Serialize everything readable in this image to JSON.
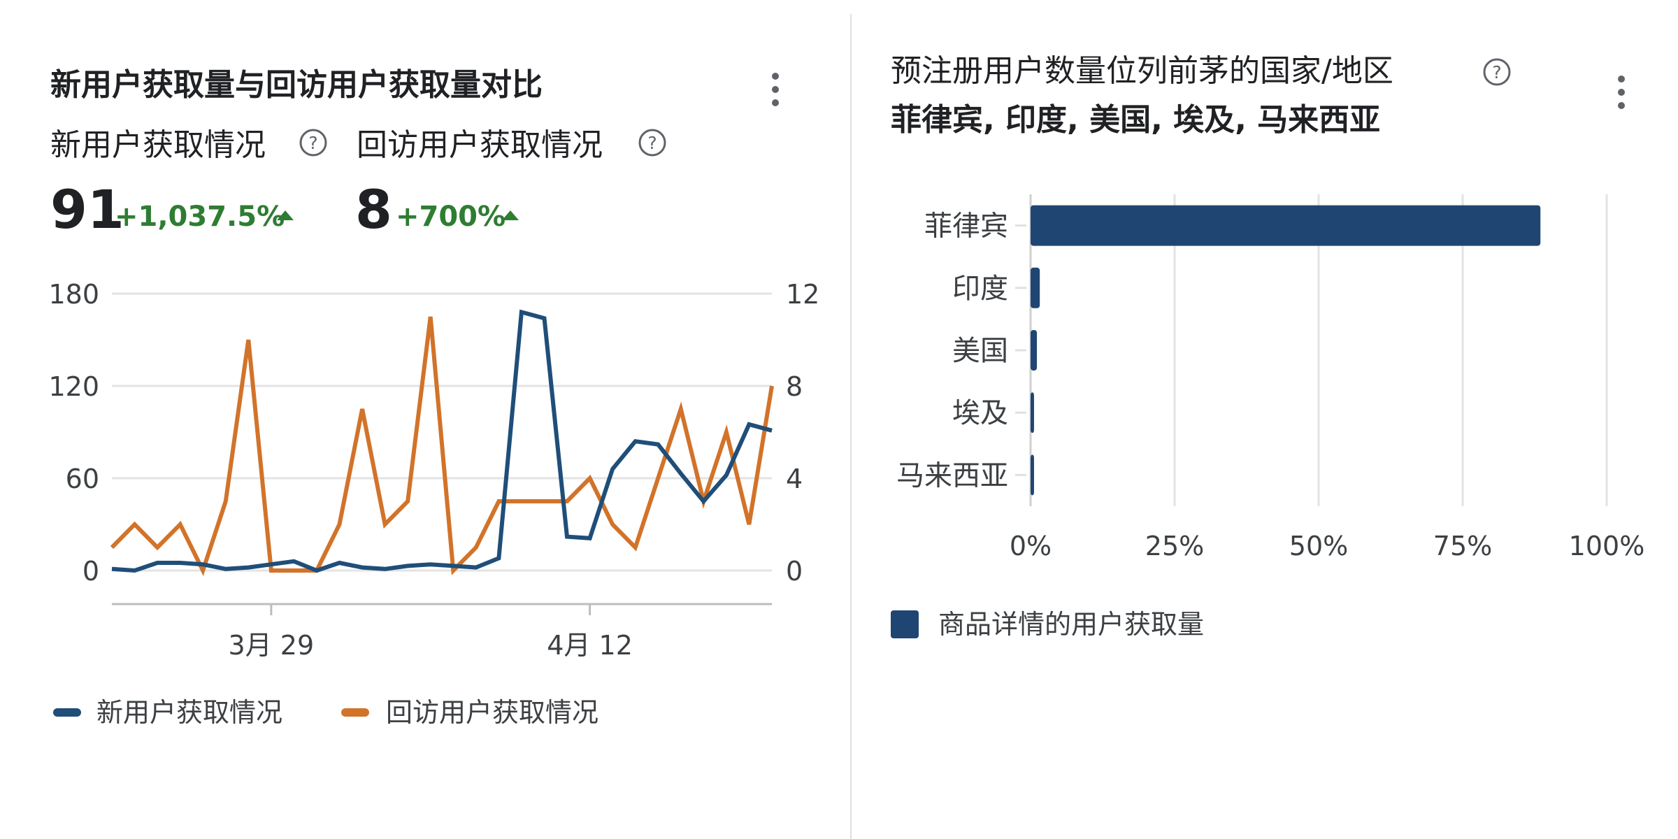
{
  "left_card": {
    "title": "新用户获取量与回访用户获取量对比",
    "metrics": [
      {
        "label": "新用户获取情况",
        "value": "91",
        "change": "+1,037.5%"
      },
      {
        "label": "回访用户获取情况",
        "value": "8",
        "change": "+700%"
      }
    ],
    "legend": [
      "新用户获取情况",
      "回访用户获取情况"
    ]
  },
  "right_card": {
    "title": "预注册用户数量位列前茅的国家/地区",
    "subtitle": "菲律宾, 印度, 美国, 埃及, 马来西亚",
    "legend": "商品详情的用户获取量"
  },
  "chart_data": [
    {
      "type": "line",
      "x_tick_labels": [
        "3月 29",
        "4月 12"
      ],
      "ylim_left": [
        0,
        180
      ],
      "ylim_right": [
        0,
        12
      ],
      "yticks_left": [
        "0",
        "60",
        "120",
        "180"
      ],
      "yticks_right": [
        "0",
        "4",
        "8",
        "12"
      ],
      "grid": true,
      "legend_position": "bottom",
      "series": [
        {
          "name": "新用户获取情况",
          "axis": "left",
          "color": "#1f4e79",
          "values": [
            1,
            0,
            5,
            5,
            4,
            1,
            2,
            4,
            6,
            0,
            5,
            2,
            1,
            3,
            4,
            3,
            2,
            8,
            168,
            164,
            22,
            21,
            66,
            84,
            82,
            63,
            45,
            62,
            95,
            91
          ]
        },
        {
          "name": "回访用户获取情况",
          "axis": "right",
          "color": "#d2732a",
          "values": [
            1,
            2,
            1,
            2,
            0,
            3,
            10,
            0,
            0,
            0,
            2,
            7,
            2,
            3,
            11,
            0,
            1,
            3,
            3,
            3,
            3,
            4,
            2,
            1,
            4,
            7,
            3,
            6,
            2,
            8
          ]
        }
      ]
    },
    {
      "type": "bar",
      "orientation": "horizontal",
      "categories": [
        "菲律宾",
        "印度",
        "美国",
        "埃及",
        "马来西亚"
      ],
      "series": [
        {
          "name": "商品详情的用户获取量",
          "color": "#1f4673",
          "values": [
            88.5,
            1.6,
            1.1,
            0.6,
            0.6
          ]
        }
      ],
      "xlim": [
        0,
        100
      ],
      "xtick_labels": [
        "0%",
        "25%",
        "50%",
        "75%",
        "100%"
      ],
      "grid": true,
      "legend_position": "bottom-left"
    }
  ]
}
